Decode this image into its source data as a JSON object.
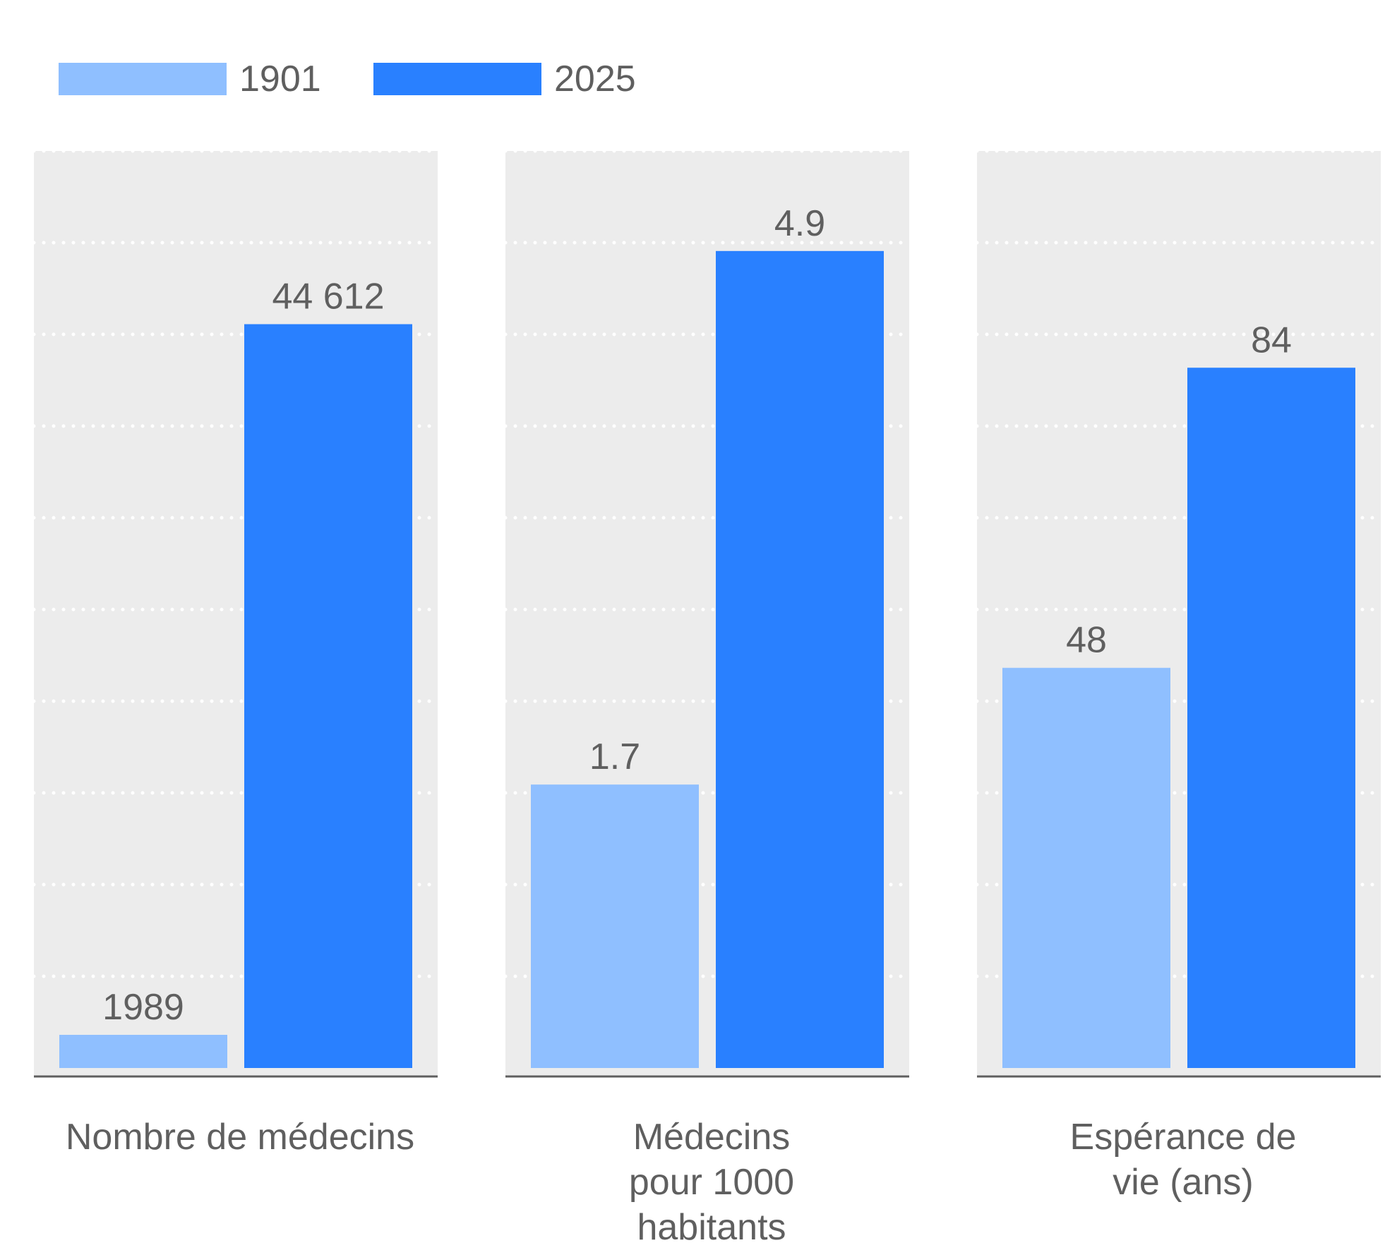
{
  "legend": [
    {
      "label": "1901",
      "color": "#8fbfff"
    },
    {
      "label": "2025",
      "color": "#2980ff"
    }
  ],
  "colors": {
    "panel_bg": "#ececec",
    "grid": "#ffffff",
    "axis": "#5f5f5f",
    "text": "#5f5f5f"
  },
  "chart_data": [
    {
      "type": "bar",
      "title": "Nombre de médecins",
      "categories": [
        "1901",
        "2025"
      ],
      "values": [
        1989,
        44612
      ],
      "labels": [
        "1989",
        "44 612"
      ],
      "ylim": [
        0,
        55000
      ],
      "grid": true
    },
    {
      "type": "bar",
      "title": "Médecins pour 1000 habitants",
      "categories": [
        "1901",
        "2025"
      ],
      "values": [
        1.7,
        4.9
      ],
      "labels": [
        "1.7",
        "4.9"
      ],
      "ylim": [
        0,
        5.5
      ],
      "grid": true
    },
    {
      "type": "bar",
      "title": "Espérance de vie (ans)",
      "categories": [
        "1901",
        "2025"
      ],
      "values": [
        48,
        84
      ],
      "labels": [
        "48",
        "84"
      ],
      "ylim": [
        0,
        110
      ],
      "grid": true
    }
  ]
}
